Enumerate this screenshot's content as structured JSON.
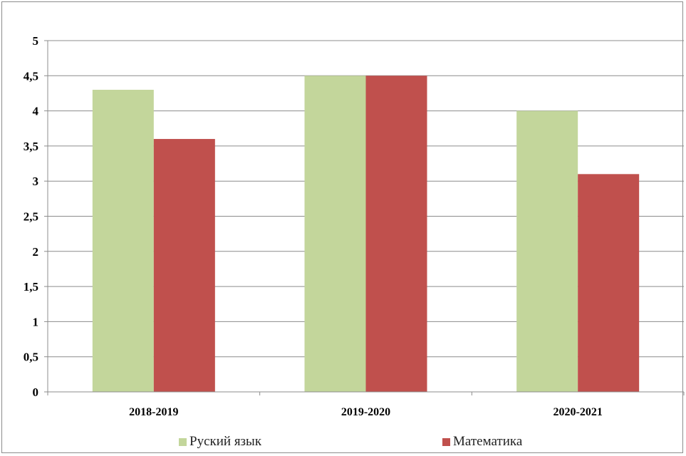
{
  "chart_data": {
    "type": "bar",
    "categories": [
      "2018-2019",
      "2019-2020",
      "2020-2021"
    ],
    "series": [
      {
        "name": "Руский язык",
        "values": [
          4.3,
          4.5,
          4.0
        ],
        "color": "#c3d69b"
      },
      {
        "name": "Математика",
        "values": [
          3.6,
          4.5,
          3.1
        ],
        "color": "#c0504d"
      }
    ],
    "ylim": [
      0,
      5
    ],
    "yticks": [
      0,
      0.5,
      1,
      1.5,
      2,
      2.5,
      3,
      3.5,
      4,
      4.5,
      5
    ],
    "ytick_labels": [
      "0",
      "0,5",
      "1",
      "1,5",
      "2",
      "2,5",
      "3",
      "3,5",
      "4",
      "4,5",
      "5"
    ],
    "grid": true,
    "legend_position": "bottom",
    "colors": {
      "gridline": "#8c8c8c",
      "axis": "#8c8c8c"
    }
  }
}
